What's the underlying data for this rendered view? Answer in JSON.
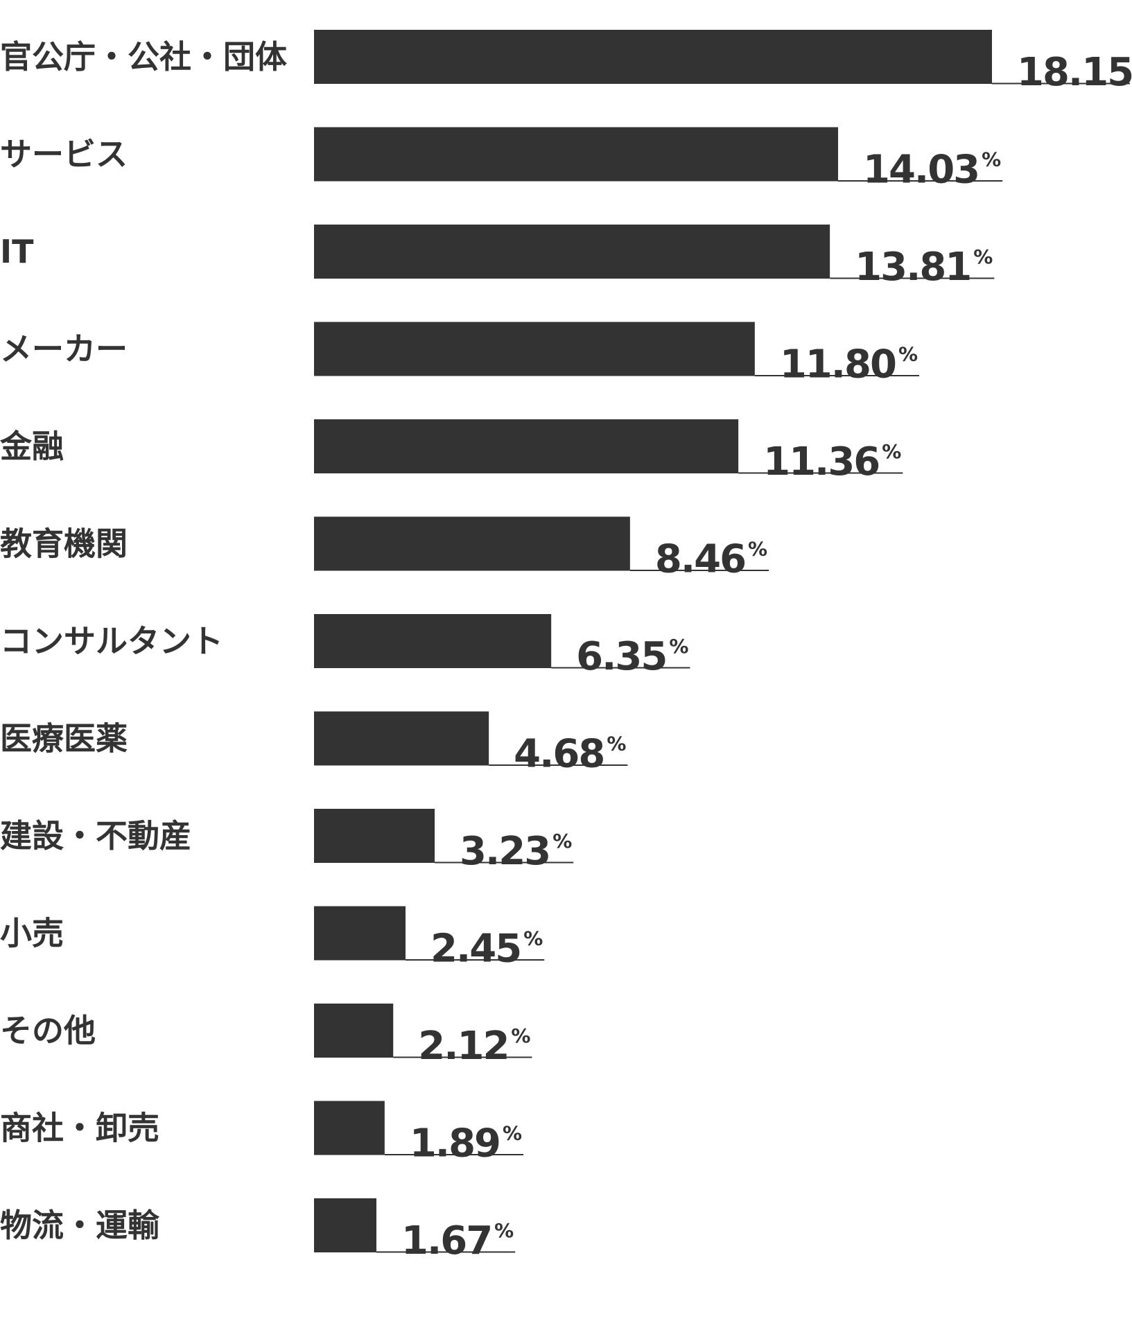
{
  "chart_data": {
    "type": "bar",
    "orientation": "horizontal",
    "categories": [
      "官公庁・公社・団体",
      "サービス",
      "IT",
      "メーカー",
      "金融",
      "教育機関",
      "コンサルタント",
      "医療医薬",
      "建設・不動産",
      "小売",
      "その他",
      "商社・卸売",
      "物流・運輸"
    ],
    "values": [
      18.15,
      14.03,
      13.81,
      11.8,
      11.36,
      8.46,
      6.35,
      4.68,
      3.23,
      2.45,
      2.12,
      1.89,
      1.67
    ],
    "value_labels": [
      "18.15",
      "14.03",
      "13.81",
      "11.80",
      "11.36",
      "8.46",
      "6.35",
      "4.68",
      "3.23",
      "2.45",
      "2.12",
      "1.89",
      "1.67"
    ],
    "unit": "%",
    "xlim": [
      0,
      18.15
    ],
    "grid": false,
    "legend": "none",
    "bar_color": "#333333",
    "text_color": "#333333"
  }
}
